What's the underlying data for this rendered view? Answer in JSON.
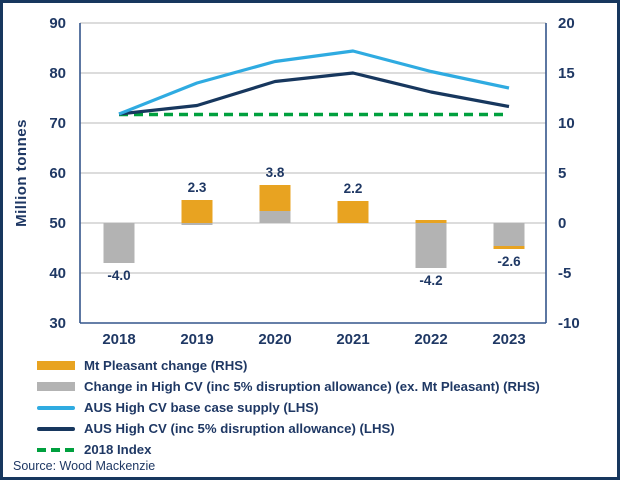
{
  "source": "Source: Wood Mackenzie",
  "colors": {
    "orange": "#E8A321",
    "gray": "#B3B3B3",
    "lightblue": "#2FABE1",
    "navyline": "#17375E",
    "green": "#00A03E",
    "text": "#1F3864",
    "grid": "#C8C8C8",
    "frame": "#34558B"
  },
  "legend": {
    "items": [
      {
        "label": "Mt Pleasant change (RHS)",
        "swatch": "bar",
        "color": "orange"
      },
      {
        "label": "Change in High CV (inc 5% disruption allowance) (ex. Mt Pleasant) (RHS)",
        "swatch": "bar",
        "color": "gray"
      },
      {
        "label": "AUS High CV base case supply (LHS)",
        "swatch": "line",
        "color": "lightblue"
      },
      {
        "label": "AUS High CV (inc 5% disruption allowance) (LHS)",
        "swatch": "line",
        "color": "navyline"
      },
      {
        "label": "2018 Index",
        "swatch": "dash",
        "color": "green"
      }
    ]
  },
  "chart_data": {
    "type": "combo-bar-line",
    "x": [
      "2018",
      "2019",
      "2020",
      "2021",
      "2022",
      "2023"
    ],
    "left_axis": {
      "label": "Million tonnes",
      "range": [
        30,
        90
      ],
      "ticks": [
        90,
        80,
        70,
        60,
        50,
        40,
        30
      ]
    },
    "right_axis": {
      "range": [
        -10,
        20
      ],
      "ticks": [
        20,
        15,
        10,
        5,
        0,
        -5,
        -10
      ]
    },
    "bar_value_labels": [
      "-4.0",
      "2.3",
      "3.8",
      "2.2",
      "-4.2",
      "-2.6"
    ],
    "bars": [
      {
        "year": "2018",
        "label": "-4.0",
        "label_pos": "below",
        "segments": [
          {
            "series": "change-in-high-cv",
            "color": "gray",
            "from": 0,
            "to": -4.0
          }
        ]
      },
      {
        "year": "2019",
        "label": "2.3",
        "label_pos": "above",
        "segments": [
          {
            "series": "change-in-high-cv",
            "color": "gray",
            "from": -0.2,
            "to": 0
          },
          {
            "series": "mt-pleasant-change",
            "color": "orange",
            "from": 0,
            "to": 2.3
          }
        ]
      },
      {
        "year": "2020",
        "label": "3.8",
        "label_pos": "above",
        "segments": [
          {
            "series": "change-in-high-cv",
            "color": "gray",
            "from": 0,
            "to": 1.2
          },
          {
            "series": "mt-pleasant-change",
            "color": "orange",
            "from": 1.2,
            "to": 3.8
          }
        ]
      },
      {
        "year": "2021",
        "label": "2.2",
        "label_pos": "above",
        "segments": [
          {
            "series": "mt-pleasant-change",
            "color": "orange",
            "from": 0,
            "to": 2.2
          }
        ]
      },
      {
        "year": "2022",
        "label": "-4.2",
        "label_pos": "below",
        "segments": [
          {
            "series": "mt-pleasant-change",
            "color": "orange",
            "from": 0,
            "to": 0.3
          },
          {
            "series": "change-in-high-cv",
            "color": "gray",
            "from": 0,
            "to": -4.5
          }
        ]
      },
      {
        "year": "2023",
        "label": "-2.6",
        "label_pos": "below",
        "segments": [
          {
            "series": "change-in-high-cv",
            "color": "gray",
            "from": 0,
            "to": -2.3
          },
          {
            "series": "mt-pleasant-change",
            "color": "orange",
            "from": -2.3,
            "to": -2.6
          }
        ]
      }
    ],
    "lines": [
      {
        "id": "2018-index",
        "name": "2018 Index",
        "color": "green",
        "dashed": true,
        "width": 3.5,
        "values": [
          71.7,
          71.7,
          71.7,
          71.7,
          71.7,
          71.7
        ]
      },
      {
        "id": "aus-high-cv-disruption",
        "name": "AUS High CV (inc 5% disruption allowance) (LHS)",
        "color": "navyline",
        "dashed": false,
        "width": 3.2,
        "values": [
          71.8,
          73.5,
          78.3,
          80.0,
          76.2,
          73.3
        ]
      },
      {
        "id": "aus-high-cv-base",
        "name": "AUS High CV base case supply (LHS)",
        "color": "lightblue",
        "dashed": false,
        "width": 3.2,
        "values": [
          71.8,
          78.0,
          82.3,
          84.4,
          80.3,
          77.0
        ]
      }
    ]
  }
}
